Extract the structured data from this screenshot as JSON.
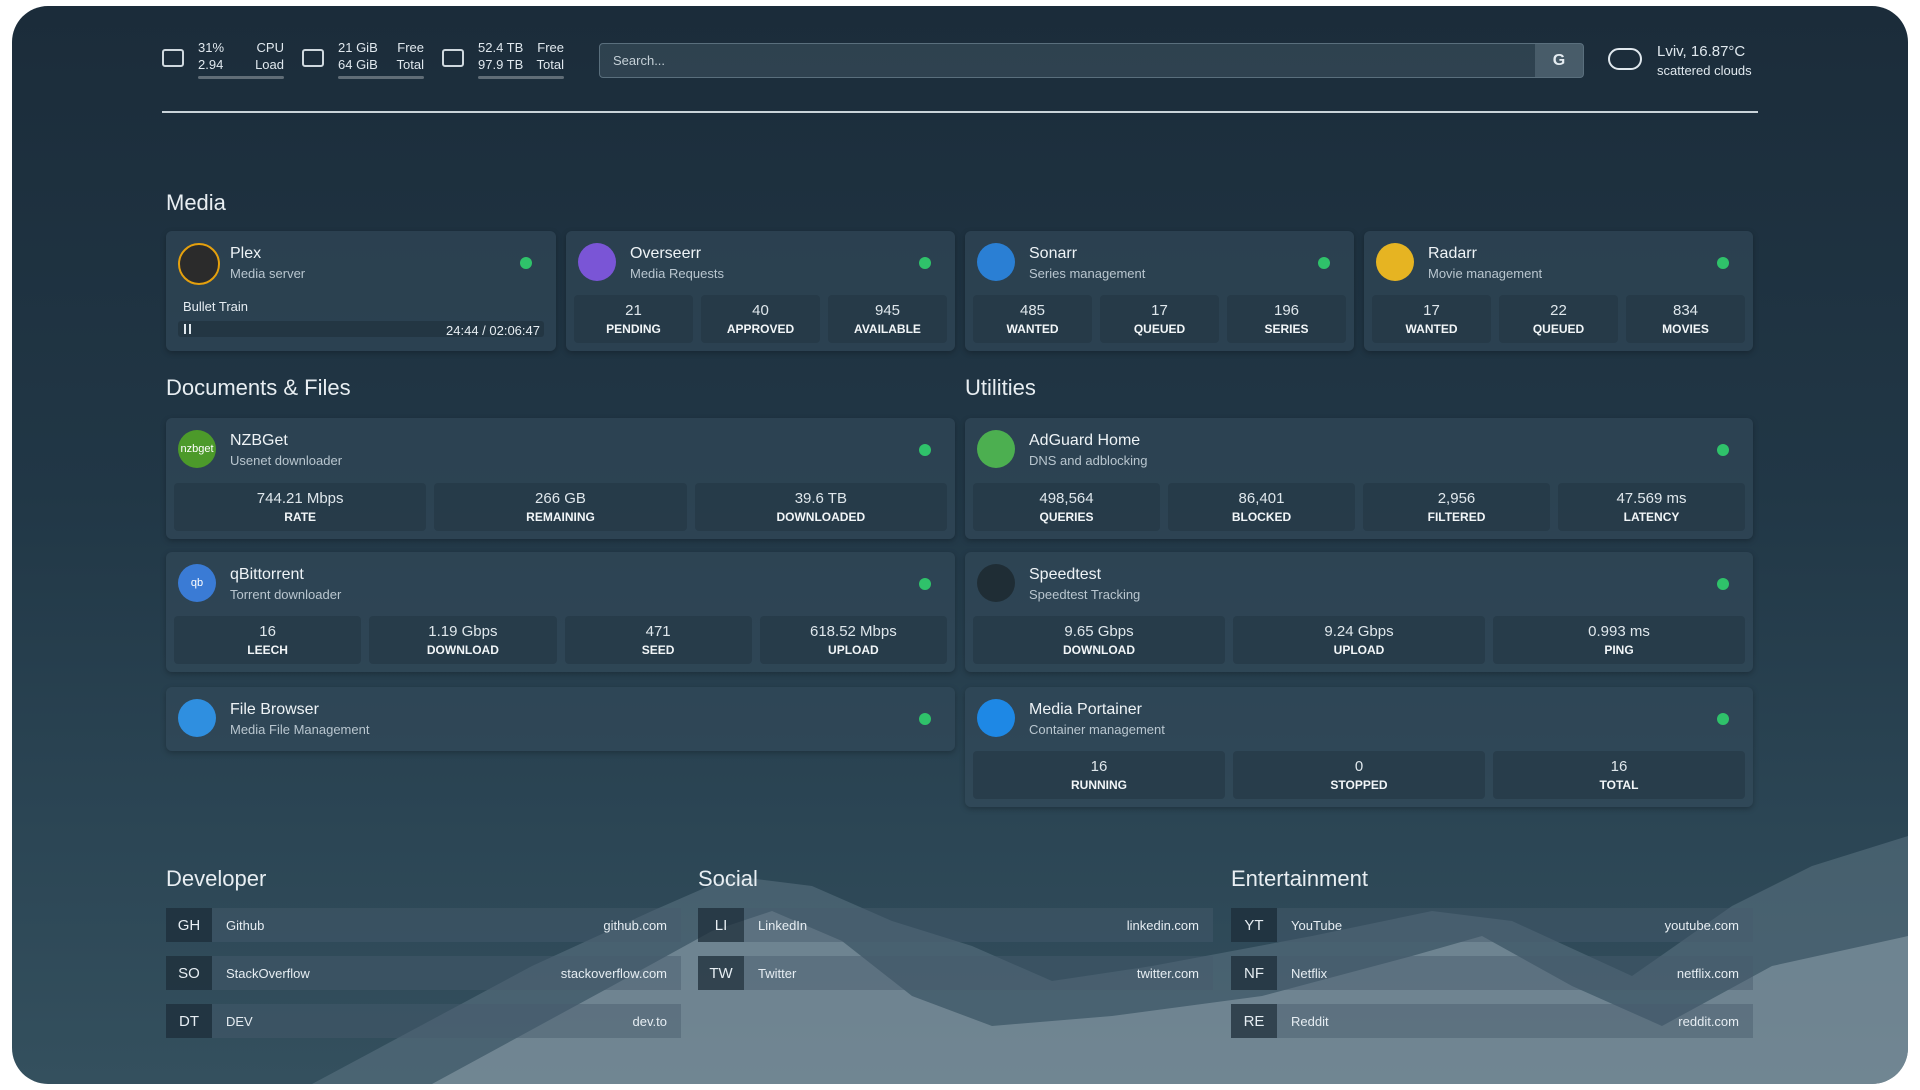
{
  "header": {
    "stats": [
      {
        "lines": [
          "31%",
          "2.94"
        ],
        "labels": [
          "CPU",
          "Load"
        ]
      },
      {
        "lines": [
          "21 GiB",
          "64 GiB"
        ],
        "labels": [
          "Free",
          "Total"
        ]
      },
      {
        "lines": [
          "52.4 TB",
          "97.9 TB"
        ],
        "labels": [
          "Free",
          "Total"
        ]
      }
    ],
    "search": {
      "placeholder": "Search...",
      "button": "G"
    },
    "weather": {
      "location": "Lviv, 16.87°C",
      "condition": "scattered clouds"
    }
  },
  "sections": [
    {
      "title": "Media",
      "services": [
        {
          "name": "Plex",
          "description": "Media server",
          "now_playing": {
            "title": "Bullet Train",
            "time": "24:44 / 02:06:47"
          }
        },
        {
          "name": "Overseerr",
          "description": "Media Requests",
          "stats": [
            {
              "value": "21",
              "label": "PENDING"
            },
            {
              "value": "40",
              "label": "APPROVED"
            },
            {
              "value": "945",
              "label": "AVAILABLE"
            }
          ]
        },
        {
          "name": "Sonarr",
          "description": "Series management",
          "stats": [
            {
              "value": "485",
              "label": "WANTED"
            },
            {
              "value": "17",
              "label": "QUEUED"
            },
            {
              "value": "196",
              "label": "SERIES"
            }
          ]
        },
        {
          "name": "Radarr",
          "description": "Movie management",
          "stats": [
            {
              "value": "17",
              "label": "WANTED"
            },
            {
              "value": "22",
              "label": "QUEUED"
            },
            {
              "value": "834",
              "label": "MOVIES"
            }
          ]
        }
      ]
    },
    {
      "title": "Documents & Files",
      "services": [
        {
          "name": "NZBGet",
          "description": "Usenet downloader",
          "icon_text": "nzbget",
          "stats": [
            {
              "value": "744.21 Mbps",
              "label": "RATE"
            },
            {
              "value": "266 GB",
              "label": "REMAINING"
            },
            {
              "value": "39.6 TB",
              "label": "DOWNLOADED"
            }
          ]
        },
        {
          "name": "qBittorrent",
          "description": "Torrent downloader",
          "icon_text": "qb",
          "stats": [
            {
              "value": "16",
              "label": "LEECH"
            },
            {
              "value": "1.19 Gbps",
              "label": "DOWNLOAD"
            },
            {
              "value": "471",
              "label": "SEED"
            },
            {
              "value": "618.52 Mbps",
              "label": "UPLOAD"
            }
          ]
        },
        {
          "name": "File Browser",
          "description": "Media File Management"
        }
      ]
    },
    {
      "title": "Utilities",
      "services": [
        {
          "name": "AdGuard Home",
          "description": "DNS and adblocking",
          "stats": [
            {
              "value": "498,564",
              "label": "QUERIES"
            },
            {
              "value": "86,401",
              "label": "BLOCKED"
            },
            {
              "value": "2,956",
              "label": "FILTERED"
            },
            {
              "value": "47.569 ms",
              "label": "LATENCY"
            }
          ]
        },
        {
          "name": "Speedtest",
          "description": "Speedtest Tracking",
          "stats": [
            {
              "value": "9.65 Gbps",
              "label": "DOWNLOAD"
            },
            {
              "value": "9.24 Gbps",
              "label": "UPLOAD"
            },
            {
              "value": "0.993 ms",
              "label": "PING"
            }
          ]
        },
        {
          "name": "Media Portainer",
          "description": "Container management",
          "stats": [
            {
              "value": "16",
              "label": "RUNNING"
            },
            {
              "value": "0",
              "label": "STOPPED"
            },
            {
              "value": "16",
              "label": "TOTAL"
            }
          ]
        }
      ]
    }
  ],
  "bookmarks": [
    {
      "title": "Developer",
      "links": [
        {
          "abbr": "GH",
          "name": "Github",
          "url": "github.com"
        },
        {
          "abbr": "SO",
          "name": "StackOverflow",
          "url": "stackoverflow.com"
        },
        {
          "abbr": "DT",
          "name": "DEV",
          "url": "dev.to"
        }
      ]
    },
    {
      "title": "Social",
      "links": [
        {
          "abbr": "LI",
          "name": "LinkedIn",
          "url": "linkedin.com"
        },
        {
          "abbr": "TW",
          "name": "Twitter",
          "url": "twitter.com"
        }
      ]
    },
    {
      "title": "Entertainment",
      "links": [
        {
          "abbr": "YT",
          "name": "YouTube",
          "url": "youtube.com"
        },
        {
          "abbr": "NF",
          "name": "Netflix",
          "url": "netflix.com"
        },
        {
          "abbr": "RE",
          "name": "Reddit",
          "url": "reddit.com"
        }
      ]
    }
  ]
}
